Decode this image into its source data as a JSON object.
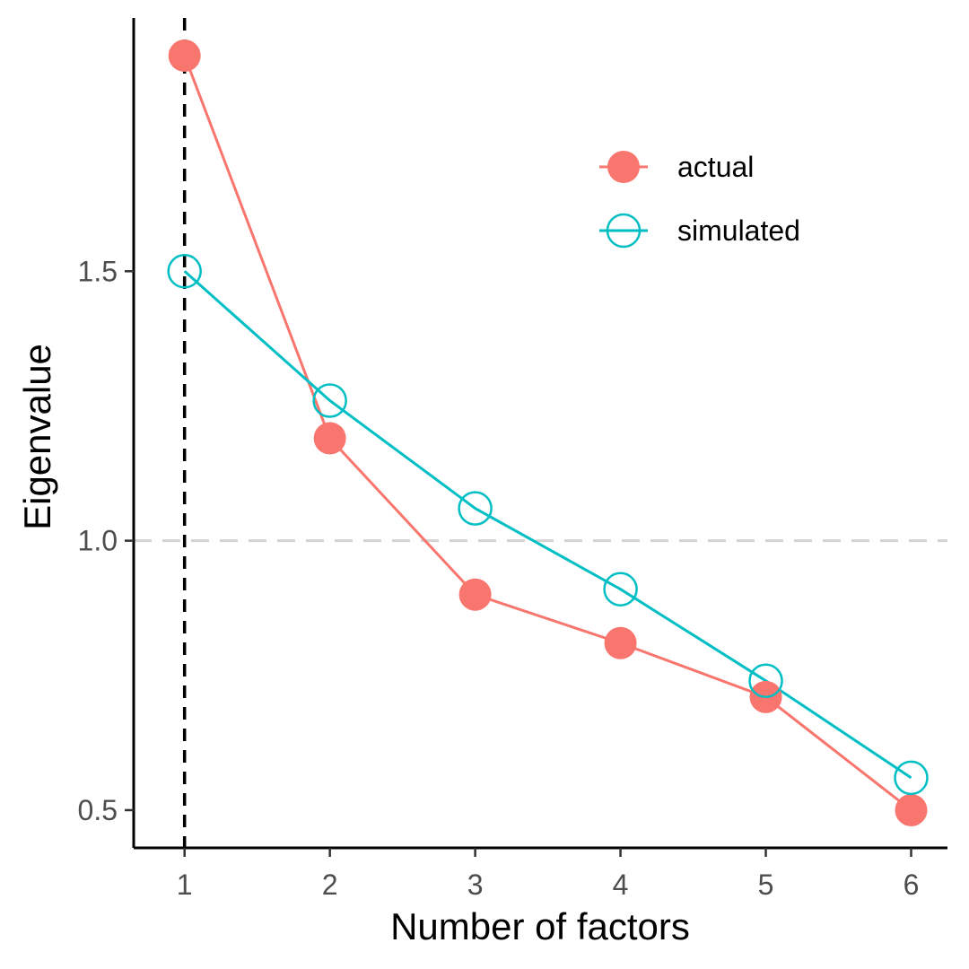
{
  "chart_data": {
    "type": "line",
    "title": "",
    "xlabel": "Number of factors",
    "ylabel": "Eigenvalue",
    "x": [
      1,
      2,
      3,
      4,
      5,
      6
    ],
    "x_ticks": [
      "1",
      "2",
      "3",
      "4",
      "5",
      "6"
    ],
    "y_ticks": [
      "0.5",
      "1.0",
      "1.5"
    ],
    "xlim": [
      0.65,
      6.25
    ],
    "ylim": [
      0.43,
      1.97
    ],
    "series": [
      {
        "name": "actual",
        "values": [
          1.9,
          1.19,
          0.9,
          0.81,
          0.71,
          0.5
        ],
        "color": "#f8766d",
        "marker": "filled-circle"
      },
      {
        "name": "simulated",
        "values": [
          1.5,
          1.26,
          1.06,
          0.91,
          0.74,
          0.56
        ],
        "color": "#00bfc4",
        "marker": "open-circle"
      }
    ],
    "reference_lines": [
      {
        "orientation": "vertical",
        "value": 1,
        "style": "dashed",
        "color": "#000000"
      },
      {
        "orientation": "horizontal",
        "value": 1.0,
        "style": "dashed",
        "color": "#d3d3d3"
      }
    ],
    "legend_position": "top-right",
    "grid": false
  }
}
